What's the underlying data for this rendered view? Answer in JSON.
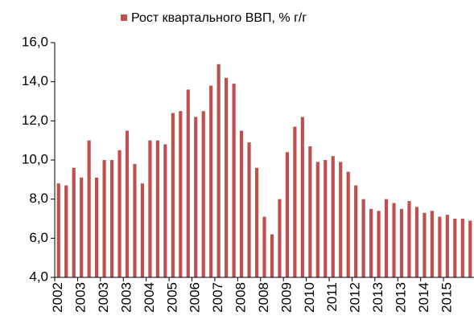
{
  "chart_data": {
    "type": "bar",
    "categories": [
      "2002",
      null,
      null,
      "2003",
      null,
      null,
      "2003",
      null,
      null,
      "2003",
      null,
      null,
      "2004",
      null,
      null,
      "2005",
      null,
      null,
      "2006",
      null,
      null,
      "2007",
      null,
      null,
      "2008",
      null,
      null,
      "2008",
      null,
      null,
      "2009",
      null,
      null,
      "2010",
      null,
      null,
      "2011",
      null,
      null,
      "2012",
      null,
      null,
      "2013",
      null,
      null,
      "2013",
      null,
      null,
      "2014",
      null,
      null,
      "2015",
      null,
      null,
      null
    ],
    "series": [
      {
        "name": "Рост квартального ВВП, % г/г",
        "color": "#c0504d",
        "values": [
          8.8,
          8.7,
          9.6,
          9.1,
          11.0,
          9.1,
          10.0,
          10.0,
          10.5,
          11.5,
          9.8,
          8.8,
          11.0,
          11.0,
          10.8,
          12.4,
          12.5,
          13.6,
          12.2,
          12.5,
          13.8,
          14.9,
          14.2,
          13.9,
          11.5,
          10.9,
          9.6,
          7.1,
          6.2,
          8.0,
          10.4,
          11.7,
          12.2,
          10.7,
          9.9,
          10.0,
          10.2,
          9.9,
          9.4,
          8.7,
          8.0,
          7.5,
          7.4,
          8.0,
          7.8,
          7.5,
          7.9,
          7.6,
          7.3,
          7.4,
          7.1,
          7.2,
          7.0,
          7.0,
          6.9
        ]
      }
    ],
    "ylim": [
      4,
      16
    ],
    "yticks": [
      {
        "value": 4,
        "label": "4,0"
      },
      {
        "value": 6,
        "label": "6,0"
      },
      {
        "value": 8,
        "label": "8,0"
      },
      {
        "value": 10,
        "label": "10,0"
      },
      {
        "value": 12,
        "label": "12,0"
      },
      {
        "value": 14,
        "label": "14,0"
      },
      {
        "value": 16,
        "label": "16,0"
      }
    ],
    "grid": false,
    "legend": "top"
  }
}
